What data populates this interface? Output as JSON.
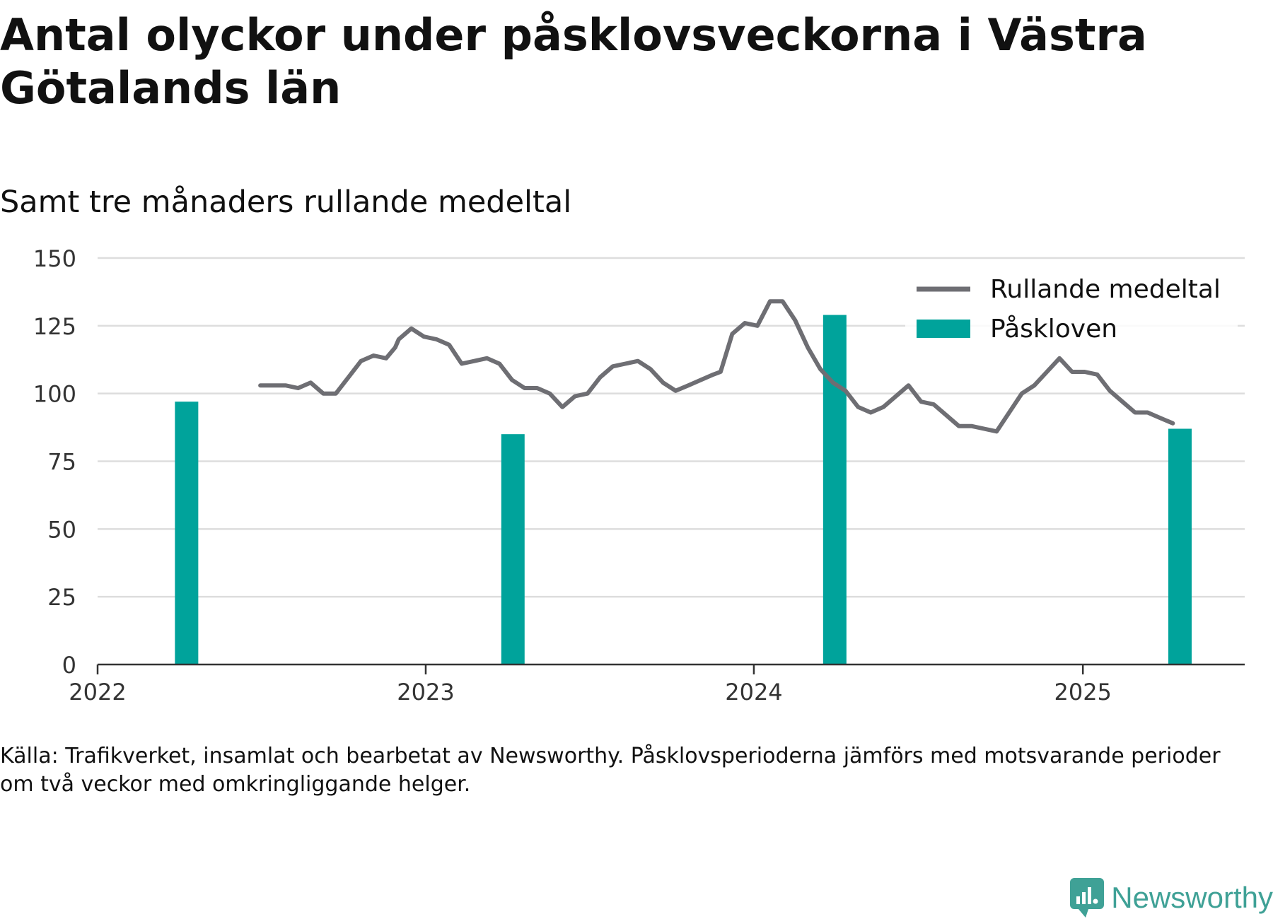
{
  "title": "Antal olyckor under påsklovsveckorna i Västra Götalands län",
  "subtitle": "Samt tre månaders rullande medeltal",
  "source": {
    "line1": "Källa: Trafikverket, insamlat och bearbetat av Newsworthy. Påsklovsperioderna jämförs med motsvarande perioder",
    "line2": "om två veckor med omkringliggande helger."
  },
  "brand": {
    "name": "Newsworthy",
    "icon": "newsworthy-logo-icon",
    "color": "#3fa196"
  },
  "colors": {
    "line": "#6e6e73",
    "bar": "#00a39b",
    "grid": "#dddddd",
    "axis": "#333333"
  },
  "chart_data": {
    "type": "bar+line",
    "xlim": [
      "2022-01-01",
      "2025-06-30"
    ],
    "ylim": [
      0,
      150
    ],
    "yticks": [
      0,
      25,
      50,
      75,
      100,
      125,
      150
    ],
    "xticks": [
      {
        "date": "2022-01-01",
        "label": "2022"
      },
      {
        "date": "2023-01-01",
        "label": "2023"
      },
      {
        "date": "2024-01-01",
        "label": "2024"
      },
      {
        "date": "2025-01-01",
        "label": "2025"
      }
    ],
    "grid": true,
    "legend_position": "top-right",
    "series": [
      {
        "name": "Rullande medeltal",
        "type": "line",
        "color": "#6e6e73",
        "points": [
          [
            "2022-07-01",
            103
          ],
          [
            "2022-07-15",
            103
          ],
          [
            "2022-07-29",
            103
          ],
          [
            "2022-08-12",
            102
          ],
          [
            "2022-08-26",
            104
          ],
          [
            "2022-09-09",
            100
          ],
          [
            "2022-09-23",
            100
          ],
          [
            "2022-10-07",
            106
          ],
          [
            "2022-10-21",
            112
          ],
          [
            "2022-11-04",
            114
          ],
          [
            "2022-11-18",
            113
          ],
          [
            "2022-11-28",
            117
          ],
          [
            "2022-12-02",
            120
          ],
          [
            "2022-12-16",
            124
          ],
          [
            "2022-12-30",
            121
          ],
          [
            "2023-01-13",
            120
          ],
          [
            "2023-01-27",
            118
          ],
          [
            "2023-02-10",
            111
          ],
          [
            "2023-02-24",
            112
          ],
          [
            "2023-03-10",
            113
          ],
          [
            "2023-03-24",
            111
          ],
          [
            "2023-04-07",
            105
          ],
          [
            "2023-04-21",
            102
          ],
          [
            "2023-05-05",
            102
          ],
          [
            "2023-05-19",
            100
          ],
          [
            "2023-06-02",
            95
          ],
          [
            "2023-06-16",
            99
          ],
          [
            "2023-06-30",
            100
          ],
          [
            "2023-07-14",
            106
          ],
          [
            "2023-07-28",
            110
          ],
          [
            "2023-08-11",
            111
          ],
          [
            "2023-08-25",
            112
          ],
          [
            "2023-09-08",
            109
          ],
          [
            "2023-09-22",
            104
          ],
          [
            "2023-10-06",
            101
          ],
          [
            "2023-10-20",
            103
          ],
          [
            "2023-11-03",
            105
          ],
          [
            "2023-11-17",
            107
          ],
          [
            "2023-11-25",
            108
          ],
          [
            "2023-12-08",
            122
          ],
          [
            "2023-12-22",
            126
          ],
          [
            "2024-01-05",
            125
          ],
          [
            "2024-01-19",
            134
          ],
          [
            "2024-02-02",
            134
          ],
          [
            "2024-02-16",
            127
          ],
          [
            "2024-03-01",
            117
          ],
          [
            "2024-03-15",
            109
          ],
          [
            "2024-03-29",
            104
          ],
          [
            "2024-04-12",
            101
          ],
          [
            "2024-04-26",
            95
          ],
          [
            "2024-05-10",
            93
          ],
          [
            "2024-05-24",
            95
          ],
          [
            "2024-06-07",
            99
          ],
          [
            "2024-06-21",
            103
          ],
          [
            "2024-07-05",
            97
          ],
          [
            "2024-07-19",
            96
          ],
          [
            "2024-08-02",
            92
          ],
          [
            "2024-08-16",
            88
          ],
          [
            "2024-08-30",
            88
          ],
          [
            "2024-09-13",
            87
          ],
          [
            "2024-09-27",
            86
          ],
          [
            "2024-10-11",
            93
          ],
          [
            "2024-10-25",
            100
          ],
          [
            "2024-11-08",
            103
          ],
          [
            "2024-11-22",
            108
          ],
          [
            "2024-12-06",
            113
          ],
          [
            "2024-12-20",
            108
          ],
          [
            "2025-01-03",
            108
          ],
          [
            "2025-01-17",
            107
          ],
          [
            "2025-01-31",
            101
          ],
          [
            "2025-02-14",
            97
          ],
          [
            "2025-02-28",
            93
          ],
          [
            "2025-03-14",
            93
          ],
          [
            "2025-03-28",
            91
          ],
          [
            "2025-04-11",
            89
          ]
        ]
      },
      {
        "name": "Påskloven",
        "type": "bar",
        "color": "#00a39b",
        "points": [
          [
            "2022-04-10",
            97
          ],
          [
            "2023-04-08",
            85
          ],
          [
            "2024-03-31",
            129
          ],
          [
            "2025-04-19",
            87
          ]
        ]
      }
    ]
  }
}
